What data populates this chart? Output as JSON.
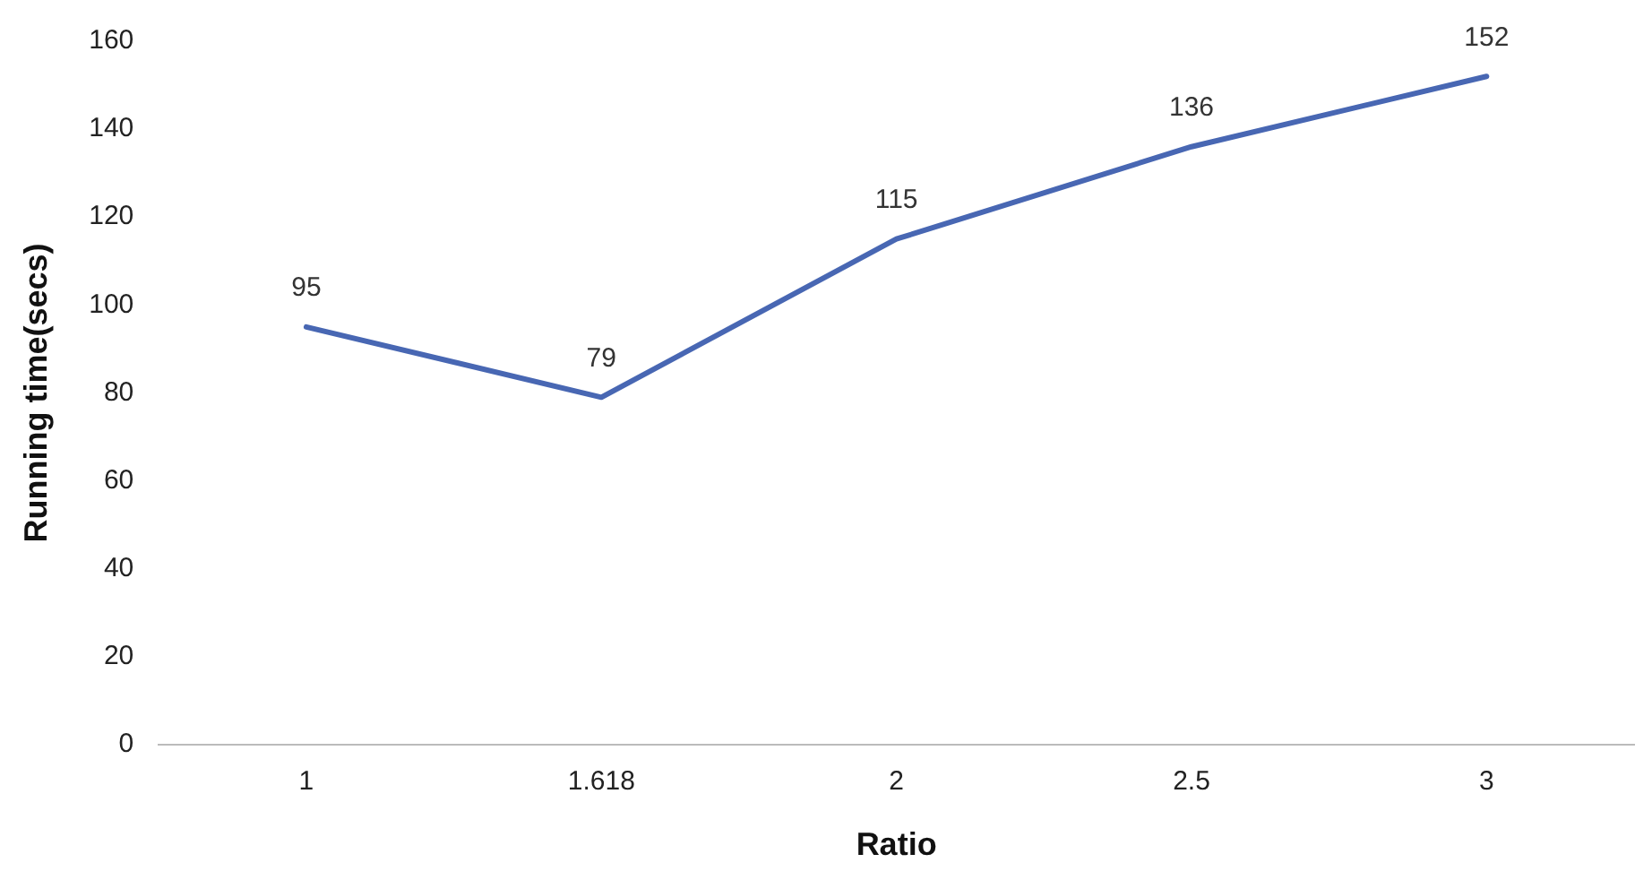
{
  "chart_data": {
    "type": "line",
    "xlabel": "Ratio",
    "ylabel": "Running time(secs)",
    "categories": [
      "1",
      "1.618",
      "2",
      "2.5",
      "3"
    ],
    "series": [
      {
        "color": "#4867b3",
        "values": [
          95,
          79,
          115,
          136,
          152
        ]
      }
    ],
    "ylim": [
      0,
      160
    ],
    "yticks": [
      0,
      20,
      40,
      60,
      80,
      100,
      120,
      140,
      160
    ],
    "grid": false,
    "legend": false,
    "marker": "none",
    "line_style": "solid",
    "data_labels": true
  }
}
